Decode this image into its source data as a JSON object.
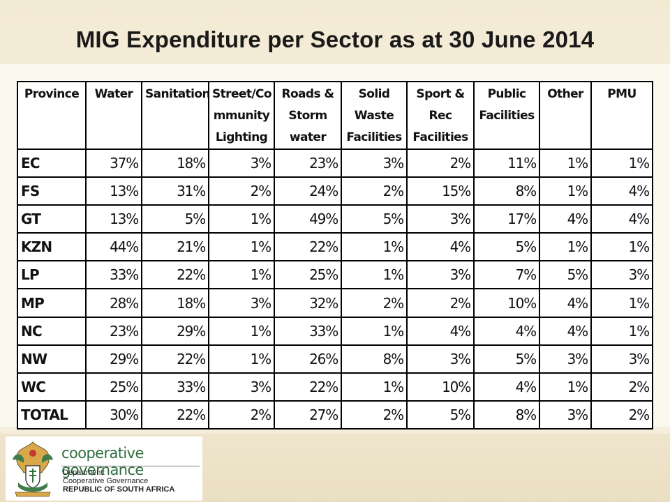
{
  "slide": {
    "title": "MIG Expenditure per Sector as at 30 June 2014"
  },
  "table": {
    "headers": [
      "Province",
      "Water",
      "Sanitation",
      "Street/Co mmunity Lighting",
      "Roads & Storm water",
      "Solid Waste Facilities",
      "Sport & Rec Facilities",
      "Public Facilities",
      "Other",
      "PMU"
    ],
    "rows": [
      [
        "EC",
        "37%",
        "18%",
        "3%",
        "23%",
        "3%",
        "2%",
        "11%",
        "1%",
        "1%"
      ],
      [
        "FS",
        "13%",
        "31%",
        "2%",
        "24%",
        "2%",
        "15%",
        "8%",
        "1%",
        "4%"
      ],
      [
        "GT",
        "13%",
        "5%",
        "1%",
        "49%",
        "5%",
        "3%",
        "17%",
        "4%",
        "4%"
      ],
      [
        "KZN",
        "44%",
        "21%",
        "1%",
        "22%",
        "1%",
        "4%",
        "5%",
        "1%",
        "1%"
      ],
      [
        "LP",
        "33%",
        "22%",
        "1%",
        "25%",
        "1%",
        "3%",
        "7%",
        "5%",
        "3%"
      ],
      [
        "MP",
        "28%",
        "18%",
        "3%",
        "32%",
        "2%",
        "2%",
        "10%",
        "4%",
        "1%"
      ],
      [
        "NC",
        "23%",
        "29%",
        "1%",
        "33%",
        "1%",
        "4%",
        "4%",
        "4%",
        "1%"
      ],
      [
        "NW",
        "29%",
        "22%",
        "1%",
        "26%",
        "8%",
        "3%",
        "5%",
        "3%",
        "3%"
      ],
      [
        "WC",
        "25%",
        "33%",
        "3%",
        "22%",
        "1%",
        "10%",
        "4%",
        "1%",
        "2%"
      ],
      [
        "TOTAL",
        "30%",
        "22%",
        "2%",
        "27%",
        "2%",
        "5%",
        "8%",
        "3%",
        "2%"
      ]
    ]
  },
  "footer": {
    "logo_icon": "coat-of-arms-icon",
    "brand": "cooperative governance",
    "dept_line1": "Department:",
    "dept_line2": "Cooperative Governance",
    "dept_line3": "REPUBLIC OF SOUTH AFRICA",
    "brand_color": "#2f6f3e"
  }
}
